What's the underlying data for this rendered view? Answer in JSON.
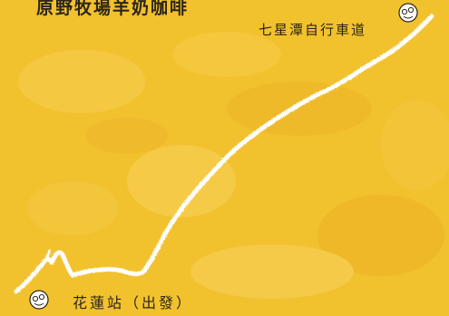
{
  "map": {
    "top_label": "原野牧場羊奶咖啡",
    "end_label": "七星潭自行車道",
    "start_label": "花蓮站（出發）",
    "colors": {
      "background": "#f2c12e",
      "route": "#ffffff",
      "text": "#2b2618"
    },
    "icons": {
      "end_marker": "pin-icon",
      "start_marker": "pin-icon"
    }
  }
}
